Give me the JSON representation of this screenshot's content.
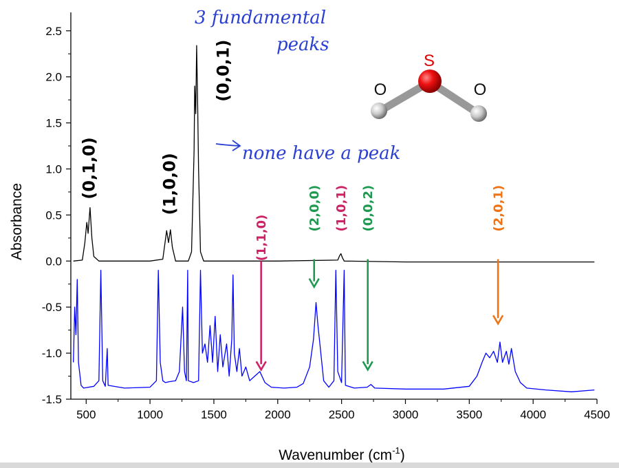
{
  "chart_data": {
    "type": "line",
    "xlabel": "Wavenumber (cm-1)",
    "xlabel_main": "Wavenumber (cm",
    "xlabel_sup": "-1",
    "xlabel_close": ")",
    "ylabel": "Absorbance",
    "xlim": [
      380,
      4500
    ],
    "ylim": [
      -1.5,
      2.7
    ],
    "x_ticks": [
      500,
      1000,
      1500,
      2000,
      2500,
      3000,
      3500,
      4000,
      4500
    ],
    "y_ticks": [
      -1.5,
      -1.0,
      -0.5,
      0.0,
      0.5,
      1.0,
      1.5,
      2.0,
      2.5
    ],
    "x_tick_labels": [
      "500",
      "1000",
      "1500",
      "2000",
      "2500",
      "3000",
      "3500",
      "4000",
      "4500"
    ],
    "y_tick_labels": [
      "-1.5",
      "-1.0",
      "-0.5",
      "0.0",
      "0.5",
      "1.0",
      "1.5",
      "2.0",
      "2.5"
    ],
    "series": [
      {
        "color": "#000000",
        "points": [
          [
            400,
            0.0
          ],
          [
            470,
            0.01
          ],
          [
            490,
            0.2
          ],
          [
            505,
            0.42
          ],
          [
            515,
            0.3
          ],
          [
            530,
            0.58
          ],
          [
            545,
            0.25
          ],
          [
            560,
            0.05
          ],
          [
            600,
            0.0
          ],
          [
            1000,
            0.0
          ],
          [
            1100,
            0.02
          ],
          [
            1130,
            0.33
          ],
          [
            1145,
            0.2
          ],
          [
            1160,
            0.34
          ],
          [
            1175,
            0.15
          ],
          [
            1200,
            0.0
          ],
          [
            1300,
            0.0
          ],
          [
            1325,
            0.1
          ],
          [
            1345,
            1.2
          ],
          [
            1350,
            1.9
          ],
          [
            1358,
            1.6
          ],
          [
            1365,
            2.34
          ],
          [
            1372,
            1.8
          ],
          [
            1380,
            1.0
          ],
          [
            1395,
            0.1
          ],
          [
            1420,
            0.0
          ],
          [
            2000,
            0.0
          ],
          [
            2470,
            0.01
          ],
          [
            2485,
            0.06
          ],
          [
            2495,
            0.08
          ],
          [
            2505,
            0.04
          ],
          [
            2520,
            0.0
          ],
          [
            3000,
            -0.01
          ],
          [
            4480,
            -0.01
          ]
        ]
      },
      {
        "color": "#0000ff",
        "points": [
          [
            400,
            -1.1
          ],
          [
            410,
            -0.5
          ],
          [
            420,
            -0.8
          ],
          [
            430,
            -0.2
          ],
          [
            440,
            -1.1
          ],
          [
            460,
            -1.35
          ],
          [
            480,
            -1.38
          ],
          [
            560,
            -1.36
          ],
          [
            600,
            -1.3
          ],
          [
            615,
            -0.1
          ],
          [
            630,
            -1.3
          ],
          [
            650,
            -1.36
          ],
          [
            665,
            -0.95
          ],
          [
            672,
            -1.35
          ],
          [
            800,
            -1.38
          ],
          [
            1000,
            -1.37
          ],
          [
            1050,
            -1.3
          ],
          [
            1065,
            -0.1
          ],
          [
            1080,
            -1.1
          ],
          [
            1100,
            -1.3
          ],
          [
            1120,
            -1.32
          ],
          [
            1150,
            -1.31
          ],
          [
            1200,
            -1.3
          ],
          [
            1230,
            -1.2
          ],
          [
            1255,
            -0.5
          ],
          [
            1270,
            -1.2
          ],
          [
            1285,
            -1.3
          ],
          [
            1295,
            -0.1
          ],
          [
            1300,
            -1.3
          ],
          [
            1340,
            -1.32
          ],
          [
            1380,
            -1.3
          ],
          [
            1395,
            -0.1
          ],
          [
            1410,
            -1.0
          ],
          [
            1430,
            -0.9
          ],
          [
            1450,
            -1.1
          ],
          [
            1470,
            -0.7
          ],
          [
            1490,
            -1.1
          ],
          [
            1510,
            -0.6
          ],
          [
            1530,
            -1.2
          ],
          [
            1550,
            -0.8
          ],
          [
            1570,
            -1.15
          ],
          [
            1600,
            -0.9
          ],
          [
            1620,
            -1.25
          ],
          [
            1640,
            -0.85
          ],
          [
            1650,
            -0.15
          ],
          [
            1660,
            -1.0
          ],
          [
            1680,
            -1.2
          ],
          [
            1700,
            -0.95
          ],
          [
            1720,
            -1.25
          ],
          [
            1750,
            -1.15
          ],
          [
            1780,
            -1.3
          ],
          [
            1820,
            -1.25
          ],
          [
            1860,
            -1.2
          ],
          [
            1900,
            -1.32
          ],
          [
            1950,
            -1.37
          ],
          [
            2050,
            -1.38
          ],
          [
            2150,
            -1.37
          ],
          [
            2200,
            -1.33
          ],
          [
            2250,
            -1.15
          ],
          [
            2280,
            -0.85
          ],
          [
            2300,
            -0.45
          ],
          [
            2315,
            -0.7
          ],
          [
            2330,
            -0.9
          ],
          [
            2360,
            -1.3
          ],
          [
            2400,
            -1.37
          ],
          [
            2440,
            -1.3
          ],
          [
            2455,
            -0.1
          ],
          [
            2470,
            -1.2
          ],
          [
            2500,
            -1.32
          ],
          [
            2520,
            -0.1
          ],
          [
            2530,
            -1.35
          ],
          [
            2600,
            -1.38
          ],
          [
            2700,
            -1.37
          ],
          [
            2730,
            -1.34
          ],
          [
            2760,
            -1.38
          ],
          [
            3000,
            -1.39
          ],
          [
            3300,
            -1.39
          ],
          [
            3500,
            -1.36
          ],
          [
            3560,
            -1.25
          ],
          [
            3600,
            -1.1
          ],
          [
            3630,
            -1.0
          ],
          [
            3660,
            -1.05
          ],
          [
            3690,
            -0.98
          ],
          [
            3720,
            -1.1
          ],
          [
            3740,
            -0.88
          ],
          [
            3760,
            -1.1
          ],
          [
            3790,
            -0.98
          ],
          [
            3810,
            -1.12
          ],
          [
            3830,
            -0.95
          ],
          [
            3860,
            -1.2
          ],
          [
            3900,
            -1.32
          ],
          [
            3950,
            -1.38
          ],
          [
            4100,
            -1.4
          ],
          [
            4300,
            -1.42
          ],
          [
            4480,
            -1.4
          ]
        ]
      }
    ],
    "peak_labels": [
      {
        "text": "(0,1,0)",
        "x": 520,
        "y": 0.67,
        "color": "#000000",
        "size": 24
      },
      {
        "text": "(1,0,0)",
        "x": 1150,
        "y": 0.5,
        "color": "#000000",
        "size": 24
      },
      {
        "text": "(0,0,1)",
        "x": 1570,
        "y": 1.73,
        "color": "#000000",
        "size": 24
      },
      {
        "text": "(1,1,0)",
        "x": 1870,
        "y": 0.0,
        "color": "#cc2266",
        "size": 18
      },
      {
        "text": "(2,0,0)",
        "x": 2285,
        "y": 0.32,
        "color": "#1e9a50",
        "size": 18
      },
      {
        "text": "(1,0,1)",
        "x": 2495,
        "y": 0.32,
        "color": "#cc2266",
        "size": 18
      },
      {
        "text": "(0,0,2)",
        "x": 2705,
        "y": 0.32,
        "color": "#1e9a50",
        "size": 18
      },
      {
        "text": "(2,0,1)",
        "x": 3725,
        "y": 0.32,
        "color": "#ef7314",
        "size": 18
      }
    ],
    "arrows": [
      {
        "x": 1870,
        "y_from": 0.0,
        "y_to": -1.18,
        "color": "#cc2266"
      },
      {
        "x": 2285,
        "y_from": 0.02,
        "y_to": -0.28,
        "color": "#1e9a50"
      },
      {
        "x": 2705,
        "y_from": 0.02,
        "y_to": -1.18,
        "color": "#1e9a50"
      },
      {
        "x": 3725,
        "y_from": 0.02,
        "y_to": -0.68,
        "color": "#ef7314"
      }
    ]
  },
  "annotations": {
    "handwritten_line1": "3 fundamental",
    "handwritten_line2": "peaks",
    "handwritten_note": "none have a peak",
    "atom_s": "S",
    "atom_o_left": "O",
    "atom_o_right": "O",
    "hand_color": "#2a3fd1",
    "sulfur_color": "#e00000"
  }
}
